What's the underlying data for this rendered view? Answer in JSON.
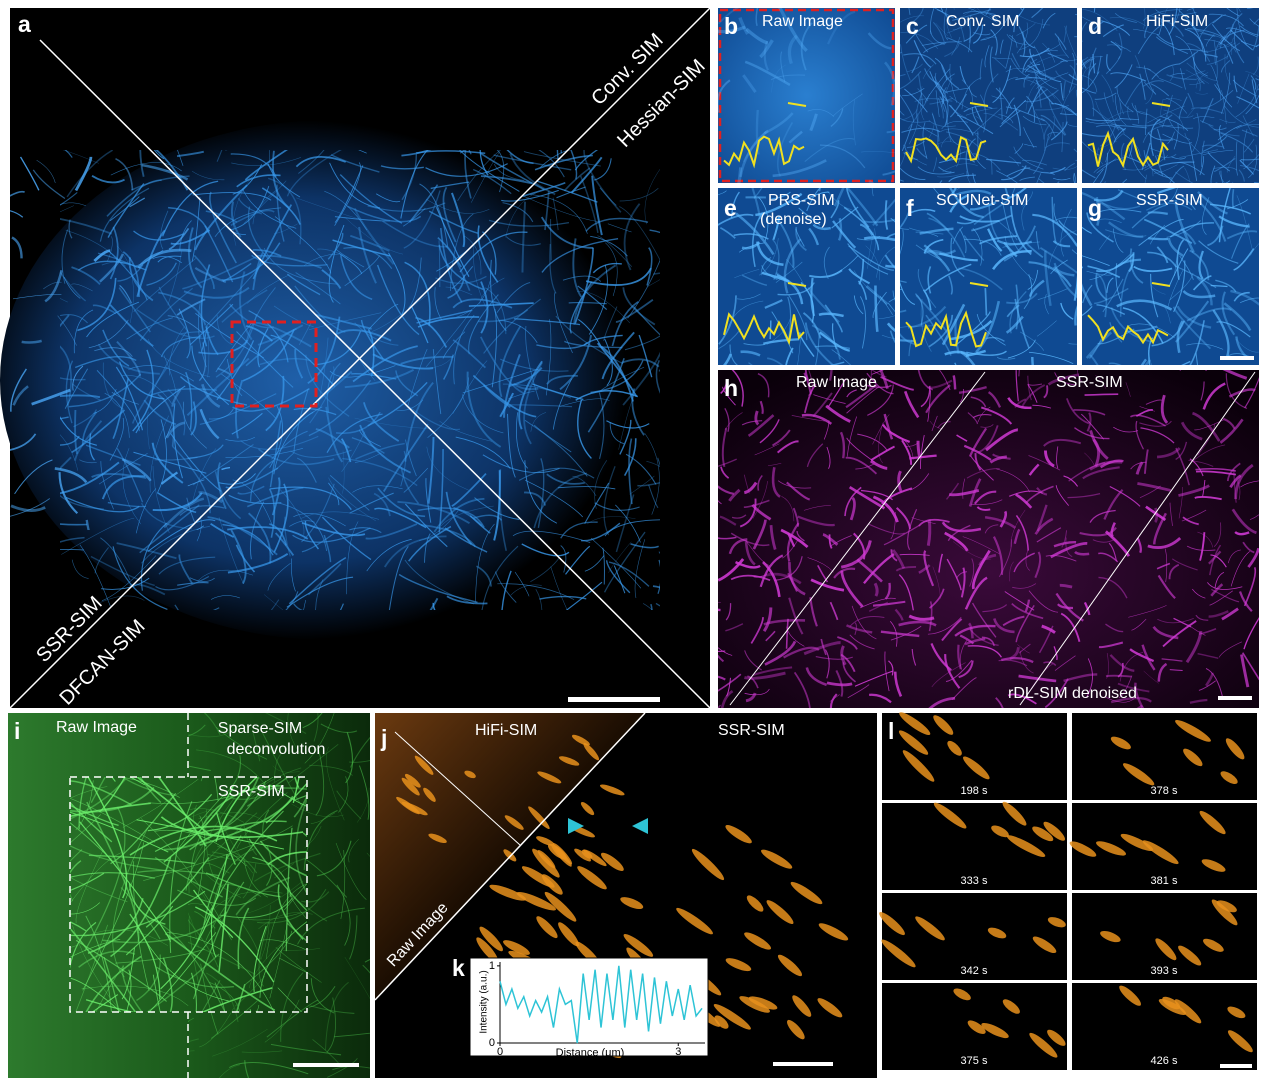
{
  "panels": {
    "a": {
      "letter": "a",
      "top_labels": [
        "Conv. SIM",
        "Hessian-SIM"
      ],
      "bottom_labels": [
        "SSR-SIM",
        "DFCAN-SIM"
      ]
    },
    "b": {
      "letter": "b",
      "label": "Raw Image"
    },
    "c": {
      "letter": "c",
      "label": "Conv. SIM"
    },
    "d": {
      "letter": "d",
      "label": "HiFi-SIM"
    },
    "e": {
      "letter": "e",
      "label": "PRS-SIM",
      "sublabel": "(denoise)"
    },
    "f": {
      "letter": "f",
      "label": "SCUNet-SIM"
    },
    "g": {
      "letter": "g",
      "label": "SSR-SIM"
    },
    "h": {
      "letter": "h",
      "labels": [
        "Raw Image",
        "SSR-SIM",
        "rDL-SIM denoised"
      ]
    },
    "i": {
      "letter": "i",
      "labels": [
        "Raw Image",
        "Sparse-SIM",
        "deconvolution",
        "SSR-SIM"
      ]
    },
    "j": {
      "letter": "j",
      "labels": [
        "HiFi-SIM",
        "SSR-SIM",
        "Raw Image"
      ]
    },
    "l": {
      "letter": "l",
      "frames": [
        "198 s",
        "378 s",
        "333 s",
        "381 s",
        "342 s",
        "393 s",
        "375 s",
        "426 s"
      ]
    }
  },
  "chart_data": {
    "type": "line",
    "letter": "k",
    "x_label": "Distance (μm)",
    "y_label": "Intensity (a.u.)",
    "x": [
      0,
      0.1,
      0.2,
      0.3,
      0.4,
      0.5,
      0.6,
      0.7,
      0.8,
      0.9,
      1.0,
      1.1,
      1.2,
      1.3,
      1.4,
      1.5,
      1.6,
      1.7,
      1.8,
      1.9,
      2.0,
      2.1,
      2.2,
      2.3,
      2.4,
      2.5,
      2.6,
      2.7,
      2.8,
      2.9,
      3.0,
      3.1,
      3.2,
      3.3,
      3.4
    ],
    "series": [
      {
        "color": "#2ec4d6",
        "values": [
          0.8,
          0.5,
          0.7,
          0.45,
          0.6,
          0.35,
          0.55,
          0.4,
          0.6,
          0.2,
          0.7,
          0.5,
          0.55,
          0.0,
          0.9,
          0.3,
          0.95,
          0.2,
          0.9,
          0.3,
          1.0,
          0.2,
          0.95,
          0.3,
          0.9,
          0.15,
          0.85,
          0.25,
          0.8,
          0.35,
          0.7,
          0.3,
          0.75,
          0.35,
          0.45
        ]
      }
    ],
    "xlim": [
      0,
      3.45
    ],
    "ylim": [
      0,
      1.05
    ],
    "xticks": [
      0,
      3
    ],
    "yticks": [
      0,
      1
    ]
  }
}
